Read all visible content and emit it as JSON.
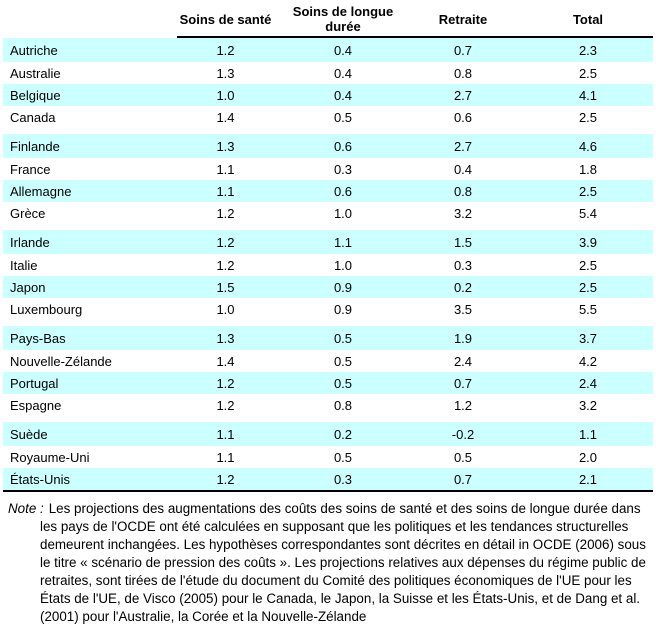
{
  "table": {
    "columns": [
      "Soins de santé",
      "Soins de longue durée",
      "Retraite",
      "Total"
    ],
    "groups": [
      {
        "rows": [
          {
            "country": "Autriche",
            "values": [
              "1.2",
              "0.4",
              "0.7",
              "2.3"
            ]
          },
          {
            "country": "Australie",
            "values": [
              "1.3",
              "0.4",
              "0.8",
              "2.5"
            ]
          },
          {
            "country": "Belgique",
            "values": [
              "1.0",
              "0.4",
              "2.7",
              "4.1"
            ]
          },
          {
            "country": "Canada",
            "values": [
              "1.4",
              "0.5",
              "0.6",
              "2.5"
            ]
          }
        ]
      },
      {
        "rows": [
          {
            "country": "Finlande",
            "values": [
              "1.3",
              "0.6",
              "2.7",
              "4.6"
            ]
          },
          {
            "country": "France",
            "values": [
              "1.1",
              "0.3",
              "0.4",
              "1.8"
            ]
          },
          {
            "country": "Allemagne",
            "values": [
              "1.1",
              "0.6",
              "0.8",
              "2.5"
            ]
          },
          {
            "country": "Grèce",
            "values": [
              "1.2",
              "1.0",
              "3.2",
              "5.4"
            ]
          }
        ]
      },
      {
        "rows": [
          {
            "country": "Irlande",
            "values": [
              "1.2",
              "1.1",
              "1.5",
              "3.9"
            ]
          },
          {
            "country": "Italie",
            "values": [
              "1.2",
              "1.0",
              "0.3",
              "2.5"
            ]
          },
          {
            "country": "Japon",
            "values": [
              "1.5",
              "0.9",
              "0.2",
              "2.5"
            ]
          },
          {
            "country": "Luxembourg",
            "values": [
              "1.0",
              "0.9",
              "3.5",
              "5.5"
            ]
          }
        ]
      },
      {
        "rows": [
          {
            "country": "Pays-Bas",
            "values": [
              "1.3",
              "0.5",
              "1.9",
              "3.7"
            ]
          },
          {
            "country": "Nouvelle-Zélande",
            "values": [
              "1.4",
              "0.5",
              "2.4",
              "4.2"
            ]
          },
          {
            "country": "Portugal",
            "values": [
              "1.2",
              "0.5",
              "0.7",
              "2.4"
            ]
          },
          {
            "country": "Espagne",
            "values": [
              "1.2",
              "0.8",
              "1.2",
              "3.2"
            ]
          }
        ]
      },
      {
        "rows": [
          {
            "country": "Suède",
            "values": [
              "1.1",
              "0.2",
              "-0.2",
              "1.1"
            ]
          },
          {
            "country": "Royaume-Uni",
            "values": [
              "1.1",
              "0.5",
              "0.5",
              "2.0"
            ]
          },
          {
            "country": "États-Unis",
            "values": [
              "1.2",
              "0.3",
              "0.7",
              "2.1"
            ]
          }
        ]
      }
    ]
  },
  "note": {
    "label": "Note :",
    "text": "Les projections des augmentations des coûts des soins de santé et des soins de longue durée dans les pays de l'OCDE ont été calculées en supposant que les politiques et les tendances structurelles demeurent inchangées. Les hypothèses correspondantes sont décrites en détail in OCDE (2006) sous le titre « scénario de pression des coûts ». Les projections relatives aux dépenses du régime public de retraites, sont tirées de l'étude du document du Comité des politiques économiques de l'UE pour les États de l'UE, de Visco (2005) pour le Canada, le Japon, la Suisse et les États-Unis, et de Dang et al. (2001) pour l'Australie, la Corée et la Nouvelle-Zélande"
  },
  "colors": {
    "row_highlight": "#CCFFFF",
    "rule": "#000000",
    "text": "#000000"
  }
}
